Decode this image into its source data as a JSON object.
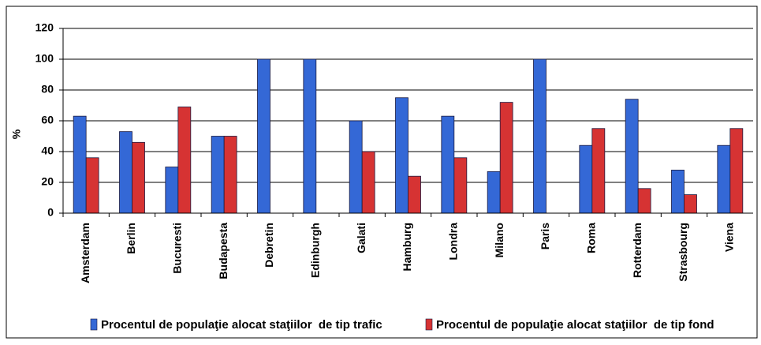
{
  "chart_data": {
    "type": "bar",
    "y_label": "%",
    "categories": [
      "Amsterdam",
      "Berlin",
      "Bucuresti",
      "Budapesta",
      "Debretin",
      "Edinburgh",
      "Galati",
      "Hamburg",
      "Londra",
      "Milano",
      "Paris",
      "Roma",
      "Rotterdam",
      "Strasbourg",
      "Viena"
    ],
    "series": [
      {
        "name": "Procentul de populaţie alocat staţiilor  de tip trafic",
        "color": "#3468d6",
        "values": [
          63,
          53,
          30,
          50,
          100,
          100,
          60,
          75,
          63,
          27,
          100,
          44,
          74,
          28,
          44
        ]
      },
      {
        "name": "Procentul de populaţie alocat staţiilor  de tip fond",
        "color": "#d63333",
        "values": [
          36,
          46,
          69,
          50,
          0,
          0,
          40,
          24,
          36,
          72,
          0,
          55,
          16,
          12,
          55
        ]
      }
    ],
    "ylim": [
      0,
      120
    ],
    "yticks": [
      0,
      20,
      40,
      60,
      80,
      100,
      120
    ],
    "grid": true
  }
}
